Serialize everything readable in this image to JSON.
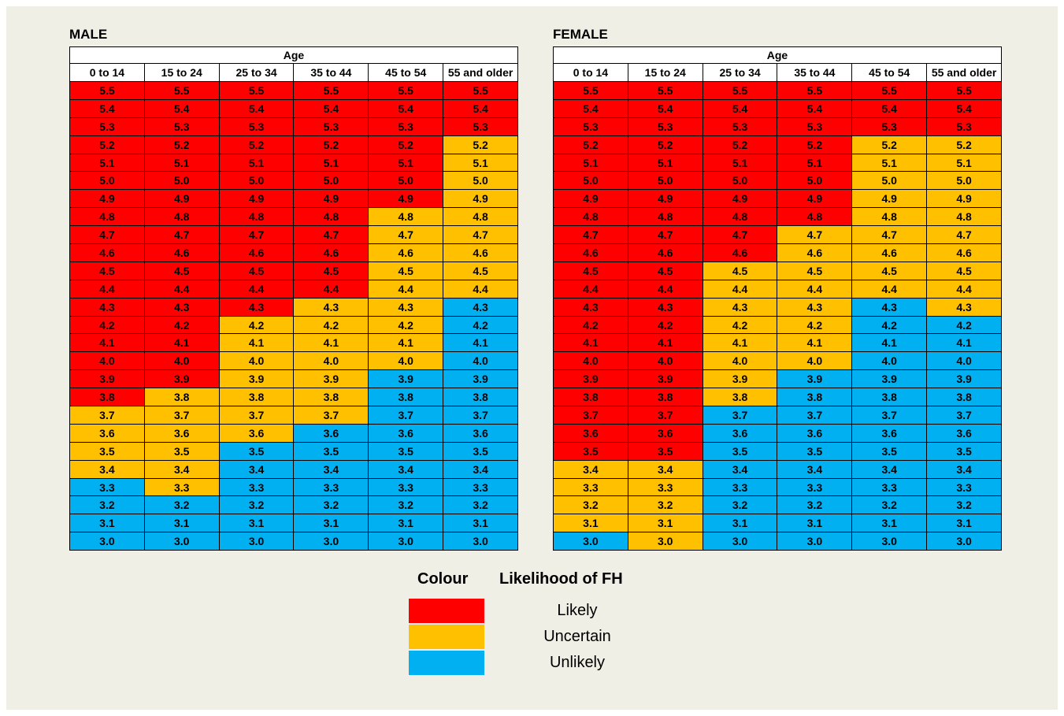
{
  "tables": [
    {
      "title": "MALE",
      "group_header": "Age",
      "columns": [
        "0 to 14",
        "15 to 24",
        "25 to 34",
        "35 to 44",
        "45 to 54",
        "55 and older"
      ],
      "rows": [
        {
          "values": [
            "5.5",
            "5.5",
            "5.5",
            "5.5",
            "5.5",
            "5.5"
          ],
          "colors": [
            "#ff0000",
            "#ff0000",
            "#ff0000",
            "#ff0000",
            "#ff0000",
            "#ff0000"
          ]
        },
        {
          "values": [
            "5.4",
            "5.4",
            "5.4",
            "5.4",
            "5.4",
            "5.4"
          ],
          "colors": [
            "#ff0000",
            "#ff0000",
            "#ff0000",
            "#ff0000",
            "#ff0000",
            "#ff0000"
          ]
        },
        {
          "values": [
            "5.3",
            "5.3",
            "5.3",
            "5.3",
            "5.3",
            "5.3"
          ],
          "colors": [
            "#ff0000",
            "#ff0000",
            "#ff0000",
            "#ff0000",
            "#ff0000",
            "#ff0000"
          ]
        },
        {
          "values": [
            "5.2",
            "5.2",
            "5.2",
            "5.2",
            "5.2",
            "5.2"
          ],
          "colors": [
            "#ff0000",
            "#ff0000",
            "#ff0000",
            "#ff0000",
            "#ff0000",
            "#ffc000"
          ]
        },
        {
          "values": [
            "5.1",
            "5.1",
            "5.1",
            "5.1",
            "5.1",
            "5.1"
          ],
          "colors": [
            "#ff0000",
            "#ff0000",
            "#ff0000",
            "#ff0000",
            "#ff0000",
            "#ffc000"
          ]
        },
        {
          "values": [
            "5.0",
            "5.0",
            "5.0",
            "5.0",
            "5.0",
            "5.0"
          ],
          "colors": [
            "#ff0000",
            "#ff0000",
            "#ff0000",
            "#ff0000",
            "#ff0000",
            "#ffc000"
          ]
        },
        {
          "values": [
            "4.9",
            "4.9",
            "4.9",
            "4.9",
            "4.9",
            "4.9"
          ],
          "colors": [
            "#ff0000",
            "#ff0000",
            "#ff0000",
            "#ff0000",
            "#ff0000",
            "#ffc000"
          ]
        },
        {
          "values": [
            "4.8",
            "4.8",
            "4.8",
            "4.8",
            "4.8",
            "4.8"
          ],
          "colors": [
            "#ff0000",
            "#ff0000",
            "#ff0000",
            "#ff0000",
            "#ffc000",
            "#ffc000"
          ]
        },
        {
          "values": [
            "4.7",
            "4.7",
            "4.7",
            "4.7",
            "4.7",
            "4.7"
          ],
          "colors": [
            "#ff0000",
            "#ff0000",
            "#ff0000",
            "#ff0000",
            "#ffc000",
            "#ffc000"
          ]
        },
        {
          "values": [
            "4.6",
            "4.6",
            "4.6",
            "4.6",
            "4.6",
            "4.6"
          ],
          "colors": [
            "#ff0000",
            "#ff0000",
            "#ff0000",
            "#ff0000",
            "#ffc000",
            "#ffc000"
          ]
        },
        {
          "values": [
            "4.5",
            "4.5",
            "4.5",
            "4.5",
            "4.5",
            "4.5"
          ],
          "colors": [
            "#ff0000",
            "#ff0000",
            "#ff0000",
            "#ff0000",
            "#ffc000",
            "#ffc000"
          ]
        },
        {
          "values": [
            "4.4",
            "4.4",
            "4.4",
            "4.4",
            "4.4",
            "4.4"
          ],
          "colors": [
            "#ff0000",
            "#ff0000",
            "#ff0000",
            "#ff0000",
            "#ffc000",
            "#ffc000"
          ]
        },
        {
          "values": [
            "4.3",
            "4.3",
            "4.3",
            "4.3",
            "4.3",
            "4.3"
          ],
          "colors": [
            "#ff0000",
            "#ff0000",
            "#ff0000",
            "#ffc000",
            "#ffc000",
            "#00b0f0"
          ]
        },
        {
          "values": [
            "4.2",
            "4.2",
            "4.2",
            "4.2",
            "4.2",
            "4.2"
          ],
          "colors": [
            "#ff0000",
            "#ff0000",
            "#ffc000",
            "#ffc000",
            "#ffc000",
            "#00b0f0"
          ]
        },
        {
          "values": [
            "4.1",
            "4.1",
            "4.1",
            "4.1",
            "4.1",
            "4.1"
          ],
          "colors": [
            "#ff0000",
            "#ff0000",
            "#ffc000",
            "#ffc000",
            "#ffc000",
            "#00b0f0"
          ]
        },
        {
          "values": [
            "4.0",
            "4.0",
            "4.0",
            "4.0",
            "4.0",
            "4.0"
          ],
          "colors": [
            "#ff0000",
            "#ff0000",
            "#ffc000",
            "#ffc000",
            "#ffc000",
            "#00b0f0"
          ]
        },
        {
          "values": [
            "3.9",
            "3.9",
            "3.9",
            "3.9",
            "3.9",
            "3.9"
          ],
          "colors": [
            "#ff0000",
            "#ff0000",
            "#ffc000",
            "#ffc000",
            "#00b0f0",
            "#00b0f0"
          ]
        },
        {
          "values": [
            "3.8",
            "3.8",
            "3.8",
            "3.8",
            "3.8",
            "3.8"
          ],
          "colors": [
            "#ff0000",
            "#ffc000",
            "#ffc000",
            "#ffc000",
            "#00b0f0",
            "#00b0f0"
          ]
        },
        {
          "values": [
            "3.7",
            "3.7",
            "3.7",
            "3.7",
            "3.7",
            "3.7"
          ],
          "colors": [
            "#ffc000",
            "#ffc000",
            "#ffc000",
            "#ffc000",
            "#00b0f0",
            "#00b0f0"
          ]
        },
        {
          "values": [
            "3.6",
            "3.6",
            "3.6",
            "3.6",
            "3.6",
            "3.6"
          ],
          "colors": [
            "#ffc000",
            "#ffc000",
            "#ffc000",
            "#00b0f0",
            "#00b0f0",
            "#00b0f0"
          ]
        },
        {
          "values": [
            "3.5",
            "3.5",
            "3.5",
            "3.5",
            "3.5",
            "3.5"
          ],
          "colors": [
            "#ffc000",
            "#ffc000",
            "#00b0f0",
            "#00b0f0",
            "#00b0f0",
            "#00b0f0"
          ]
        },
        {
          "values": [
            "3.4",
            "3.4",
            "3.4",
            "3.4",
            "3.4",
            "3.4"
          ],
          "colors": [
            "#ffc000",
            "#ffc000",
            "#00b0f0",
            "#00b0f0",
            "#00b0f0",
            "#00b0f0"
          ]
        },
        {
          "values": [
            "3.3",
            "3.3",
            "3.3",
            "3.3",
            "3.3",
            "3.3"
          ],
          "colors": [
            "#00b0f0",
            "#ffc000",
            "#00b0f0",
            "#00b0f0",
            "#00b0f0",
            "#00b0f0"
          ]
        },
        {
          "values": [
            "3.2",
            "3.2",
            "3.2",
            "3.2",
            "3.2",
            "3.2"
          ],
          "colors": [
            "#00b0f0",
            "#00b0f0",
            "#00b0f0",
            "#00b0f0",
            "#00b0f0",
            "#00b0f0"
          ]
        },
        {
          "values": [
            "3.1",
            "3.1",
            "3.1",
            "3.1",
            "3.1",
            "3.1"
          ],
          "colors": [
            "#00b0f0",
            "#00b0f0",
            "#00b0f0",
            "#00b0f0",
            "#00b0f0",
            "#00b0f0"
          ]
        },
        {
          "values": [
            "3.0",
            "3.0",
            "3.0",
            "3.0",
            "3.0",
            "3.0"
          ],
          "colors": [
            "#00b0f0",
            "#00b0f0",
            "#00b0f0",
            "#00b0f0",
            "#00b0f0",
            "#00b0f0"
          ]
        }
      ]
    },
    {
      "title": "FEMALE",
      "group_header": "Age",
      "columns": [
        "0 to 14",
        "15 to 24",
        "25 to 34",
        "35 to 44",
        "45 to 54",
        "55 and older"
      ],
      "rows": [
        {
          "values": [
            "5.5",
            "5.5",
            "5.5",
            "5.5",
            "5.5",
            "5.5"
          ],
          "colors": [
            "#ff0000",
            "#ff0000",
            "#ff0000",
            "#ff0000",
            "#ff0000",
            "#ff0000"
          ]
        },
        {
          "values": [
            "5.4",
            "5.4",
            "5.4",
            "5.4",
            "5.4",
            "5.4"
          ],
          "colors": [
            "#ff0000",
            "#ff0000",
            "#ff0000",
            "#ff0000",
            "#ff0000",
            "#ff0000"
          ]
        },
        {
          "values": [
            "5.3",
            "5.3",
            "5.3",
            "5.3",
            "5.3",
            "5.3"
          ],
          "colors": [
            "#ff0000",
            "#ff0000",
            "#ff0000",
            "#ff0000",
            "#ff0000",
            "#ff0000"
          ]
        },
        {
          "values": [
            "5.2",
            "5.2",
            "5.2",
            "5.2",
            "5.2",
            "5.2"
          ],
          "colors": [
            "#ff0000",
            "#ff0000",
            "#ff0000",
            "#ff0000",
            "#ffc000",
            "#ffc000"
          ]
        },
        {
          "values": [
            "5.1",
            "5.1",
            "5.1",
            "5.1",
            "5.1",
            "5.1"
          ],
          "colors": [
            "#ff0000",
            "#ff0000",
            "#ff0000",
            "#ff0000",
            "#ffc000",
            "#ffc000"
          ]
        },
        {
          "values": [
            "5.0",
            "5.0",
            "5.0",
            "5.0",
            "5.0",
            "5.0"
          ],
          "colors": [
            "#ff0000",
            "#ff0000",
            "#ff0000",
            "#ff0000",
            "#ffc000",
            "#ffc000"
          ]
        },
        {
          "values": [
            "4.9",
            "4.9",
            "4.9",
            "4.9",
            "4.9",
            "4.9"
          ],
          "colors": [
            "#ff0000",
            "#ff0000",
            "#ff0000",
            "#ff0000",
            "#ffc000",
            "#ffc000"
          ]
        },
        {
          "values": [
            "4.8",
            "4.8",
            "4.8",
            "4.8",
            "4.8",
            "4.8"
          ],
          "colors": [
            "#ff0000",
            "#ff0000",
            "#ff0000",
            "#ff0000",
            "#ffc000",
            "#ffc000"
          ]
        },
        {
          "values": [
            "4.7",
            "4.7",
            "4.7",
            "4.7",
            "4.7",
            "4.7"
          ],
          "colors": [
            "#ff0000",
            "#ff0000",
            "#ff0000",
            "#ffc000",
            "#ffc000",
            "#ffc000"
          ]
        },
        {
          "values": [
            "4.6",
            "4.6",
            "4.6",
            "4.6",
            "4.6",
            "4.6"
          ],
          "colors": [
            "#ff0000",
            "#ff0000",
            "#ff0000",
            "#ffc000",
            "#ffc000",
            "#ffc000"
          ]
        },
        {
          "values": [
            "4.5",
            "4.5",
            "4.5",
            "4.5",
            "4.5",
            "4.5"
          ],
          "colors": [
            "#ff0000",
            "#ff0000",
            "#ffc000",
            "#ffc000",
            "#ffc000",
            "#ffc000"
          ]
        },
        {
          "values": [
            "4.4",
            "4.4",
            "4.4",
            "4.4",
            "4.4",
            "4.4"
          ],
          "colors": [
            "#ff0000",
            "#ff0000",
            "#ffc000",
            "#ffc000",
            "#ffc000",
            "#ffc000"
          ]
        },
        {
          "values": [
            "4.3",
            "4.3",
            "4.3",
            "4.3",
            "4.3",
            "4.3"
          ],
          "colors": [
            "#ff0000",
            "#ff0000",
            "#ffc000",
            "#ffc000",
            "#00b0f0",
            "#ffc000"
          ]
        },
        {
          "values": [
            "4.2",
            "4.2",
            "4.2",
            "4.2",
            "4.2",
            "4.2"
          ],
          "colors": [
            "#ff0000",
            "#ff0000",
            "#ffc000",
            "#ffc000",
            "#00b0f0",
            "#00b0f0"
          ]
        },
        {
          "values": [
            "4.1",
            "4.1",
            "4.1",
            "4.1",
            "4.1",
            "4.1"
          ],
          "colors": [
            "#ff0000",
            "#ff0000",
            "#ffc000",
            "#ffc000",
            "#00b0f0",
            "#00b0f0"
          ]
        },
        {
          "values": [
            "4.0",
            "4.0",
            "4.0",
            "4.0",
            "4.0",
            "4.0"
          ],
          "colors": [
            "#ff0000",
            "#ff0000",
            "#ffc000",
            "#ffc000",
            "#00b0f0",
            "#00b0f0"
          ]
        },
        {
          "values": [
            "3.9",
            "3.9",
            "3.9",
            "3.9",
            "3.9",
            "3.9"
          ],
          "colors": [
            "#ff0000",
            "#ff0000",
            "#ffc000",
            "#00b0f0",
            "#00b0f0",
            "#00b0f0"
          ]
        },
        {
          "values": [
            "3.8",
            "3.8",
            "3.8",
            "3.8",
            "3.8",
            "3.8"
          ],
          "colors": [
            "#ff0000",
            "#ff0000",
            "#ffc000",
            "#00b0f0",
            "#00b0f0",
            "#00b0f0"
          ]
        },
        {
          "values": [
            "3.7",
            "3.7",
            "3.7",
            "3.7",
            "3.7",
            "3.7"
          ],
          "colors": [
            "#ff0000",
            "#ff0000",
            "#00b0f0",
            "#00b0f0",
            "#00b0f0",
            "#00b0f0"
          ]
        },
        {
          "values": [
            "3.6",
            "3.6",
            "3.6",
            "3.6",
            "3.6",
            "3.6"
          ],
          "colors": [
            "#ff0000",
            "#ff0000",
            "#00b0f0",
            "#00b0f0",
            "#00b0f0",
            "#00b0f0"
          ]
        },
        {
          "values": [
            "3.5",
            "3.5",
            "3.5",
            "3.5",
            "3.5",
            "3.5"
          ],
          "colors": [
            "#ff0000",
            "#ff0000",
            "#00b0f0",
            "#00b0f0",
            "#00b0f0",
            "#00b0f0"
          ]
        },
        {
          "values": [
            "3.4",
            "3.4",
            "3.4",
            "3.4",
            "3.4",
            "3.4"
          ],
          "colors": [
            "#ffc000",
            "#ffc000",
            "#00b0f0",
            "#00b0f0",
            "#00b0f0",
            "#00b0f0"
          ]
        },
        {
          "values": [
            "3.3",
            "3.3",
            "3.3",
            "3.3",
            "3.3",
            "3.3"
          ],
          "colors": [
            "#ffc000",
            "#ffc000",
            "#00b0f0",
            "#00b0f0",
            "#00b0f0",
            "#00b0f0"
          ]
        },
        {
          "values": [
            "3.2",
            "3.2",
            "3.2",
            "3.2",
            "3.2",
            "3.2"
          ],
          "colors": [
            "#ffc000",
            "#ffc000",
            "#00b0f0",
            "#00b0f0",
            "#00b0f0",
            "#00b0f0"
          ]
        },
        {
          "values": [
            "3.1",
            "3.1",
            "3.1",
            "3.1",
            "3.1",
            "3.1"
          ],
          "colors": [
            "#ffc000",
            "#ffc000",
            "#00b0f0",
            "#00b0f0",
            "#00b0f0",
            "#00b0f0"
          ]
        },
        {
          "values": [
            "3.0",
            "3.0",
            "3.0",
            "3.0",
            "3.0",
            "3.0"
          ],
          "colors": [
            "#00b0f0",
            "#ffc000",
            "#00b0f0",
            "#00b0f0",
            "#00b0f0",
            "#00b0f0"
          ]
        }
      ]
    }
  ],
  "legend": {
    "headers": [
      "Colour",
      "Likelihood of FH"
    ],
    "items": [
      {
        "color": "#ff0000",
        "label": "Likely"
      },
      {
        "color": "#ffc000",
        "label": "Uncertain"
      },
      {
        "color": "#00b0f0",
        "label": "Unlikely"
      }
    ]
  }
}
